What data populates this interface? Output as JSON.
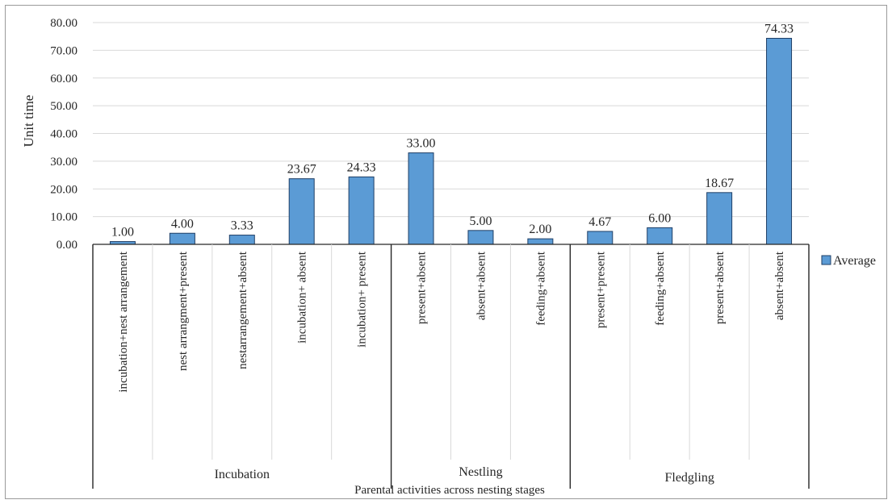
{
  "chart_data": {
    "type": "bar",
    "title": "",
    "xlabel": "Parental activities across nesting stages",
    "ylabel": "Unit time",
    "ylim": [
      0,
      80
    ],
    "ytick_step": 10,
    "ytick_format_decimals": 2,
    "grid": true,
    "legend_position": "right",
    "bar_color": "#5b9bd5",
    "bar_edge_color": "#1f3f66",
    "categories": [
      "incubation+nest arrangement",
      "nest arrangment+present",
      "nestarrangement+absent",
      "incubation+ absent",
      "incubation+ present",
      "present+absent",
      "absent+absent",
      "feeding+absent",
      "present+present",
      "feeding+absent",
      "present+absent",
      "absent+absent"
    ],
    "groups": [
      {
        "label": "Incubation",
        "count": 5
      },
      {
        "label": "Nestling",
        "count": 3
      },
      {
        "label": "Fledgling",
        "count": 4
      }
    ],
    "series": [
      {
        "name": "Average",
        "values": [
          1.0,
          4.0,
          3.33,
          23.67,
          24.33,
          33.0,
          5.0,
          2.0,
          4.67,
          6.0,
          18.67,
          74.33
        ]
      }
    ],
    "data_labels": [
      "1.00",
      "4.00",
      "3.33",
      "23.67",
      "24.33",
      "33.00",
      "5.00",
      "2.00",
      "4.67",
      "6.00",
      "18.67",
      "74.33"
    ]
  }
}
